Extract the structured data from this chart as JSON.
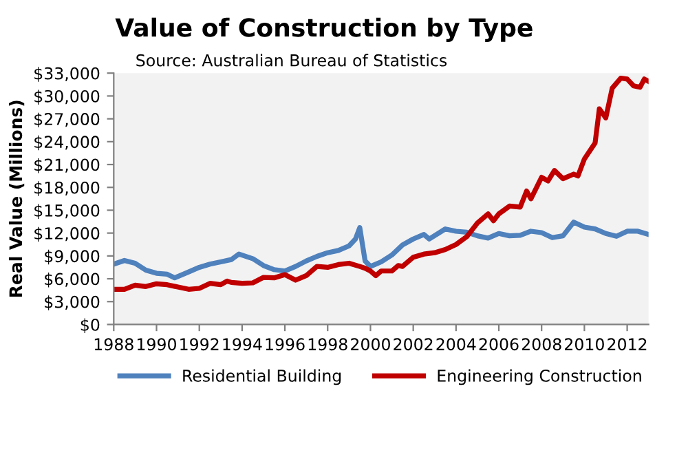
{
  "chart_data": {
    "type": "line",
    "title": "Value of Construction by Type",
    "subtitle": "Source: Australian Bureau of Statistics",
    "ylabel": "Real Value (Millions)",
    "xlim": [
      1988,
      2013
    ],
    "xticks": [
      1988,
      1990,
      1992,
      1994,
      1996,
      1998,
      2000,
      2002,
      2004,
      2006,
      2008,
      2010,
      2012
    ],
    "ylim": [
      0,
      33000
    ],
    "yticks": [
      {
        "value": 0,
        "label": "$0"
      },
      {
        "value": 3000,
        "label": "$3,000"
      },
      {
        "value": 6000,
        "label": "$6,000"
      },
      {
        "value": 9000,
        "label": "$9,000"
      },
      {
        "value": 12000,
        "label": "$12,000"
      },
      {
        "value": 15000,
        "label": "$15,000"
      },
      {
        "value": 18000,
        "label": "$18,000"
      },
      {
        "value": 21000,
        "label": "$21,000"
      },
      {
        "value": 24000,
        "label": "$24,000"
      },
      {
        "value": 27000,
        "label": "$27,000"
      },
      {
        "value": 30000,
        "label": "$30,000"
      },
      {
        "value": 33000,
        "label": "$33,000"
      }
    ],
    "grid": false,
    "legend": "bottom",
    "marker": "none",
    "line_style": "solid",
    "series": [
      {
        "name": "Residential Building",
        "color": "#4f81bd",
        "x": [
          1988,
          1988.5,
          1989,
          1989.5,
          1990,
          1990.5,
          1990.85,
          1991.5,
          1992,
          1992.5,
          1993,
          1993.5,
          1993.85,
          1994.5,
          1995,
          1995.5,
          1996,
          1996.5,
          1997,
          1997.5,
          1998,
          1998.5,
          1999,
          1999.3,
          1999.5,
          1999.75,
          2000,
          2000.5,
          2001,
          2001.5,
          2002,
          2002.5,
          2002.75,
          2003.5,
          2004,
          2004.5,
          2005,
          2005.5,
          2006,
          2006.5,
          2007,
          2007.5,
          2008,
          2008.5,
          2009,
          2009.5,
          2010,
          2010.5,
          2011,
          2011.5,
          2012,
          2012.5,
          2013
        ],
        "values": [
          7920,
          8400,
          8040,
          7140,
          6720,
          6600,
          6120,
          6900,
          7500,
          7920,
          8220,
          8520,
          9240,
          8640,
          7740,
          7200,
          7020,
          7620,
          8340,
          8940,
          9420,
          9720,
          10320,
          11220,
          12720,
          8340,
          7620,
          8220,
          9120,
          10440,
          11220,
          11820,
          11220,
          12540,
          12240,
          12120,
          11640,
          11340,
          11940,
          11640,
          11700,
          12240,
          12060,
          11400,
          11640,
          13440,
          12780,
          12540,
          11940,
          11580,
          12240,
          12240,
          11820
        ]
      },
      {
        "name": "Engineering Construction",
        "color": "#c00000",
        "x": [
          1988,
          1988.5,
          1989,
          1989.5,
          1990,
          1990.5,
          1991,
          1991.5,
          1992,
          1992.5,
          1993,
          1993.3,
          1993.5,
          1994,
          1994.5,
          1995,
          1995.5,
          1996,
          1996.5,
          1997,
          1997.5,
          1998,
          1998.5,
          1999,
          1999.5,
          1999.75,
          2000,
          2000.25,
          2000.5,
          2001,
          2001.3,
          2001.5,
          2002,
          2002.5,
          2003,
          2003.5,
          2004,
          2004.5,
          2005,
          2005.5,
          2005.75,
          2006,
          2006.5,
          2007,
          2007.3,
          2007.5,
          2008,
          2008.3,
          2008.6,
          2009,
          2009.5,
          2009.7,
          2010,
          2010.5,
          2010.7,
          2011,
          2011.3,
          2011.7,
          2012,
          2012.3,
          2012.6,
          2012.8,
          2013
        ],
        "values": [
          4620,
          4620,
          5160,
          4980,
          5340,
          5220,
          4920,
          4620,
          4740,
          5400,
          5220,
          5700,
          5520,
          5400,
          5460,
          6180,
          6120,
          6540,
          5820,
          6420,
          7620,
          7500,
          7860,
          8040,
          7620,
          7380,
          7020,
          6420,
          7020,
          7020,
          7740,
          7620,
          8820,
          9240,
          9420,
          9840,
          10500,
          11520,
          13320,
          14520,
          13620,
          14520,
          15540,
          15420,
          17520,
          16500,
          19320,
          18840,
          20220,
          19140,
          19740,
          19500,
          21720,
          23820,
          28320,
          27120,
          31020,
          32340,
          32220,
          31320,
          31140,
          32220,
          31920
        ]
      }
    ]
  }
}
